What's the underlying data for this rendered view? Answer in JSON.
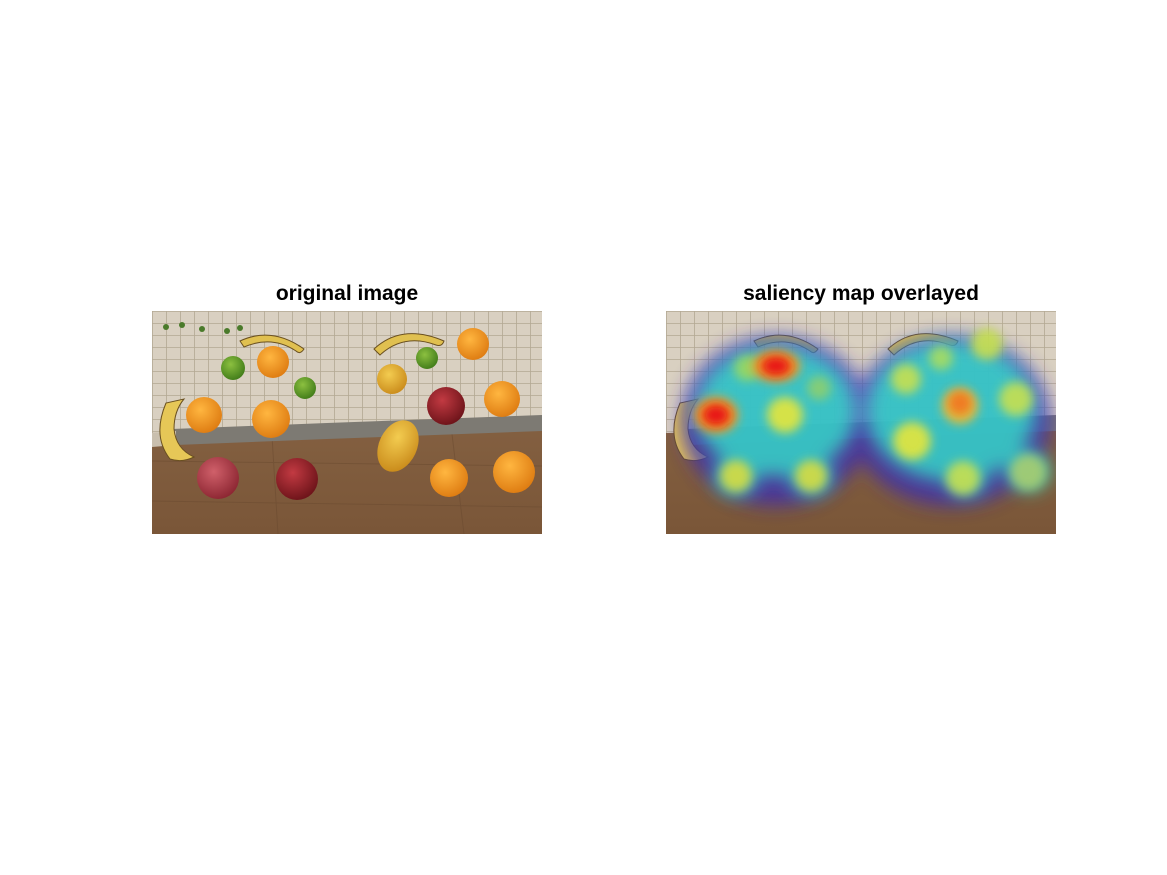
{
  "figure": {
    "left_title": "original image",
    "right_title": "saliency map overlayed"
  },
  "scene": {
    "description_icon": "fruit-photo",
    "colors": {
      "table_wood": "#8a6545",
      "tablecloth": "#d8cfc0",
      "orange": "#f0921a",
      "lime": "#5e9a24",
      "apple_red": "#8a1c22",
      "banana": "#e2c25a",
      "mango": "#e6b23a"
    }
  },
  "heatmap": {
    "colormap": "jet",
    "colors": {
      "low": "#3a2bb8",
      "mid": "#35d6c8",
      "high_mid": "#e6e63a",
      "peak": "#e81818"
    }
  }
}
